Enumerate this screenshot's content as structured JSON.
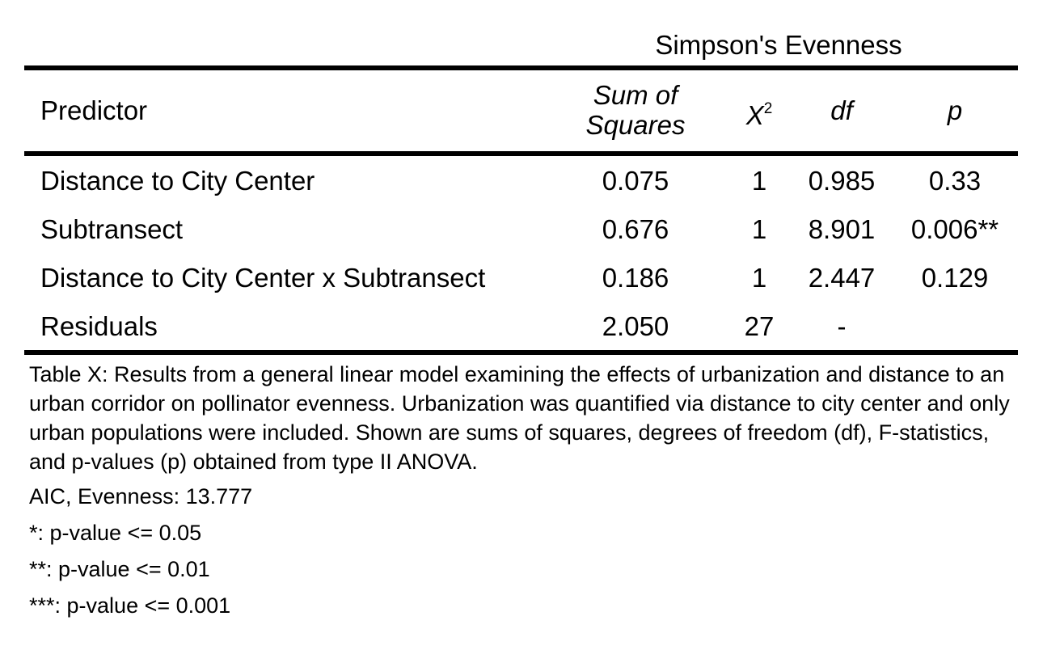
{
  "table": {
    "group_header": "Simpson's Evenness",
    "headers": {
      "predictor": "Predictor",
      "sum_of_squares": "Sum of Squares",
      "x2_base": "X",
      "x2_sup": "2",
      "df": "df",
      "p": "p"
    },
    "rows": [
      {
        "predictor": "Distance to City Center",
        "sum_of_squares": "0.075",
        "x2": "1",
        "df": "0.985",
        "p": "0.33"
      },
      {
        "predictor": "Subtransect",
        "sum_of_squares": "0.676",
        "x2": "1",
        "df": "8.901",
        "p": "0.006**"
      },
      {
        "predictor": "Distance to City Center x Subtransect",
        "sum_of_squares": "0.186",
        "x2": "1",
        "df": "2.447",
        "p": "0.129"
      },
      {
        "predictor": "Residuals",
        "sum_of_squares": "2.050",
        "x2": "27",
        "df": "-",
        "p": ""
      }
    ]
  },
  "caption": "Table X: Results from a general linear model examining the effects of urbanization and distance to an urban corridor on pollinator evenness. Urbanization was quantified via distance to city center and only urban populations were included. Shown are sums of squares, degrees of freedom (df), F-statistics, and p-values (p) obtained from type II ANOVA.",
  "notes": [
    "AIC, Evenness: 13.777",
    "*: p-value <= 0.05",
    "**: p-value <= 0.01",
    "***: p-value <= 0.001"
  ]
}
